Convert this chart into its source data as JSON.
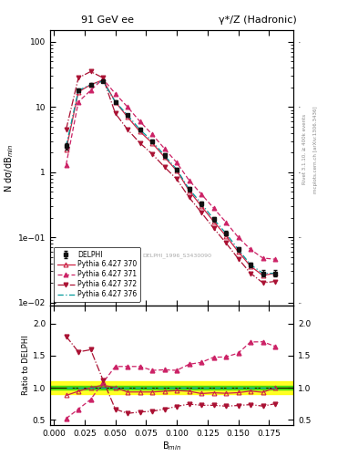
{
  "title_left": "91 GeV ee",
  "title_right": "γ*/Z (Hadronic)",
  "ylabel_main": "N dσ/dB$_{min}$",
  "ylabel_ratio": "Ratio to DELPHI",
  "xlabel": "B$_{min}$",
  "watermark": "DELPHI_1996_S3430090",
  "right_label_top": "Rivet 3.1.10, ≥ 400k events",
  "right_label_bot": "mcplots.cern.ch [arXiv:1306.3436]",
  "bmin": [
    0.01,
    0.02,
    0.03,
    0.04,
    0.05,
    0.06,
    0.07,
    0.08,
    0.09,
    0.1,
    0.11,
    0.12,
    0.13,
    0.14,
    0.15,
    0.16,
    0.17,
    0.18
  ],
  "delphi_y": [
    2.5,
    18.0,
    22.0,
    25.0,
    12.0,
    7.5,
    4.5,
    3.0,
    1.8,
    1.1,
    0.55,
    0.33,
    0.19,
    0.115,
    0.065,
    0.038,
    0.028,
    0.028
  ],
  "delphi_yerr": [
    0.3,
    1.0,
    1.0,
    1.0,
    0.6,
    0.4,
    0.25,
    0.18,
    0.12,
    0.08,
    0.04,
    0.025,
    0.015,
    0.009,
    0.005,
    0.003,
    0.003,
    0.003
  ],
  "py370_y": [
    2.2,
    17.0,
    22.0,
    26.0,
    12.0,
    7.0,
    4.2,
    2.8,
    1.7,
    1.05,
    0.52,
    0.3,
    0.175,
    0.105,
    0.06,
    0.036,
    0.026,
    0.028
  ],
  "py371_y": [
    1.3,
    12.0,
    18.0,
    27.0,
    16.0,
    10.0,
    6.0,
    3.8,
    2.3,
    1.4,
    0.75,
    0.46,
    0.28,
    0.17,
    0.1,
    0.065,
    0.048,
    0.046
  ],
  "py372_y": [
    4.5,
    28.0,
    35.0,
    28.0,
    8.0,
    4.5,
    2.8,
    1.9,
    1.2,
    0.78,
    0.41,
    0.24,
    0.138,
    0.082,
    0.047,
    0.028,
    0.02,
    0.021
  ],
  "py376_y": [
    2.5,
    18.0,
    22.0,
    25.0,
    12.0,
    7.5,
    4.5,
    3.0,
    1.8,
    1.1,
    0.55,
    0.33,
    0.19,
    0.115,
    0.065,
    0.038,
    0.028,
    0.028
  ],
  "ratio370": [
    0.88,
    0.945,
    1.0,
    1.04,
    1.0,
    0.933,
    0.933,
    0.933,
    0.944,
    0.955,
    0.945,
    0.909,
    0.921,
    0.913,
    0.923,
    0.947,
    0.929,
    1.0
  ],
  "ratio371": [
    0.52,
    0.667,
    0.818,
    1.08,
    1.33,
    1.33,
    1.33,
    1.27,
    1.278,
    1.27,
    1.364,
    1.394,
    1.474,
    1.478,
    1.538,
    1.711,
    1.714,
    1.643
  ],
  "ratio372": [
    1.8,
    1.556,
    1.591,
    1.12,
    0.667,
    0.6,
    0.622,
    0.633,
    0.667,
    0.709,
    0.745,
    0.727,
    0.726,
    0.713,
    0.723,
    0.737,
    0.714,
    0.75
  ],
  "ratio376": [
    1.0,
    1.0,
    1.0,
    1.0,
    1.0,
    1.0,
    1.0,
    1.0,
    1.0,
    1.0,
    1.0,
    1.0,
    1.0,
    1.0,
    1.0,
    1.0,
    1.0,
    1.0
  ],
  "color_delphi": "#111111",
  "color_370": "#cc2244",
  "color_371": "#cc2266",
  "color_372": "#aa1133",
  "color_376": "#009999",
  "green_band_lo": 0.97,
  "green_band_hi": 1.03,
  "yellow_band_lo": 0.9,
  "yellow_band_hi": 1.1,
  "xlim": [
    -0.003,
    0.195
  ],
  "ylim_main": [
    0.009,
    150
  ],
  "ylim_ratio": [
    0.42,
    2.28
  ],
  "yticks_main": [
    0.01,
    0.1,
    1,
    10,
    100
  ],
  "yticks_ratio": [
    0.5,
    1.0,
    1.5,
    2.0
  ]
}
